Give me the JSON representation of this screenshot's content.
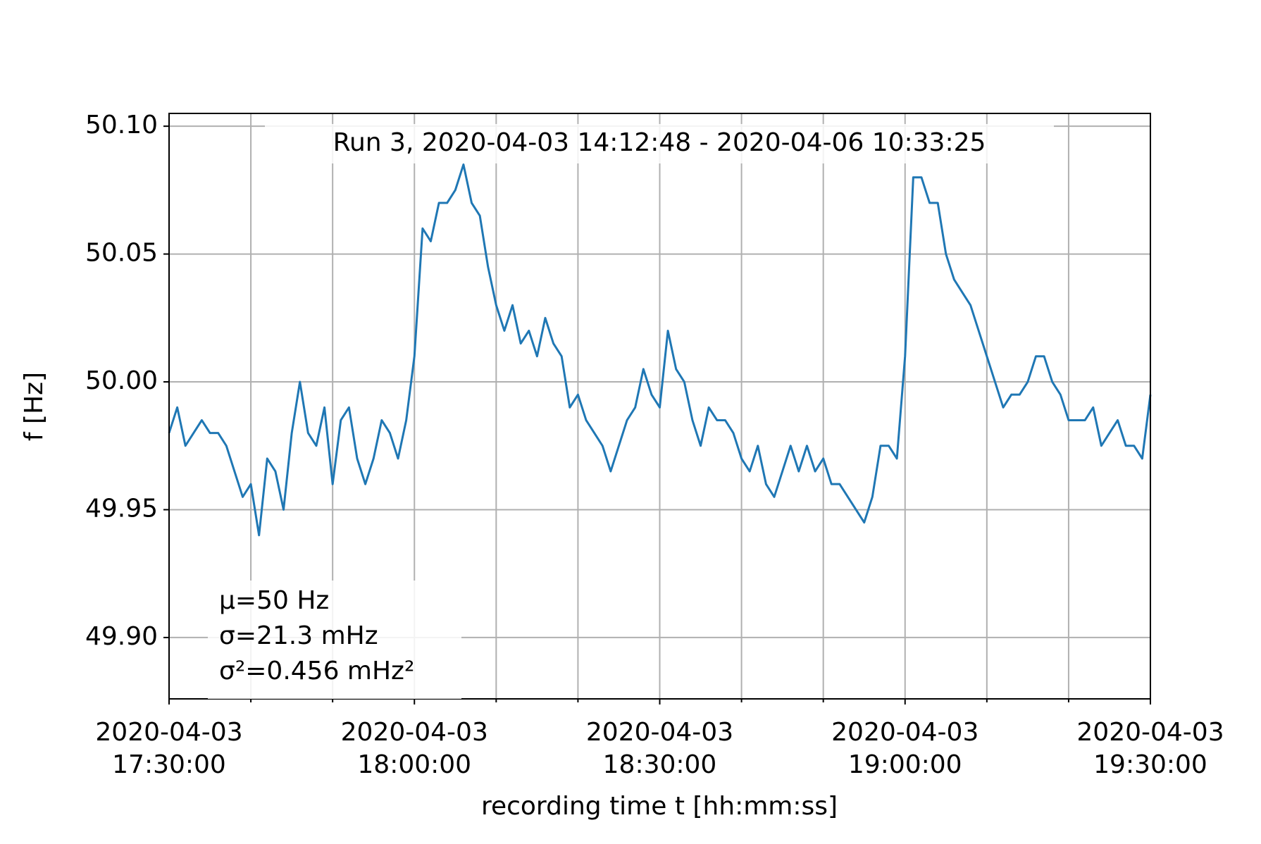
{
  "chart_data": {
    "type": "line",
    "title": "Run 3, 2020-04-03 14:12:48 - 2020-04-06 10:33:25",
    "xlabel": "recording time t [hh:mm:ss]",
    "ylabel": "f [Hz]",
    "annotations": [
      "μ=50 Hz",
      "σ=21.3 mHz",
      "σ²=0.456 mHz²"
    ],
    "xlim": [
      "2020-04-03 17:30:00",
      "2020-04-03 19:30:00"
    ],
    "ylim": [
      49.876,
      50.105
    ],
    "xticks": [
      {
        "value": "2020-04-03 17:30:00",
        "label": "2020-04-03\n17:30:00"
      },
      {
        "value": "2020-04-03 18:00:00",
        "label": "2020-04-03\n18:00:00"
      },
      {
        "value": "2020-04-03 18:30:00",
        "label": "2020-04-03\n18:30:00"
      },
      {
        "value": "2020-04-03 19:00:00",
        "label": "2020-04-03\n19:00:00"
      },
      {
        "value": "2020-04-03 19:30:00",
        "label": "2020-04-03\n19:30:00"
      }
    ],
    "xminorticks": [
      "2020-04-03 17:40:00",
      "2020-04-03 17:50:00",
      "2020-04-03 18:10:00",
      "2020-04-03 18:20:00",
      "2020-04-03 18:40:00",
      "2020-04-03 18:50:00",
      "2020-04-03 19:10:00",
      "2020-04-03 19:20:00"
    ],
    "yticks": [
      {
        "value": 49.9,
        "label": "49.90"
      },
      49.95,
      {
        "value": 50.0,
        "label": "50.00"
      },
      50.05,
      {
        "value": 50.1,
        "label": "50.10"
      }
    ],
    "grid": true,
    "x": [
      "2020-04-03 17:30:00",
      "2020-04-03 17:31:00",
      "2020-04-03 17:32:00",
      "2020-04-03 17:33:00",
      "2020-04-03 17:34:00",
      "2020-04-03 17:35:00",
      "2020-04-03 17:36:00",
      "2020-04-03 17:37:00",
      "2020-04-03 17:38:00",
      "2020-04-03 17:39:00",
      "2020-04-03 17:40:00",
      "2020-04-03 17:41:00",
      "2020-04-03 17:42:00",
      "2020-04-03 17:43:00",
      "2020-04-03 17:44:00",
      "2020-04-03 17:45:00",
      "2020-04-03 17:46:00",
      "2020-04-03 17:47:00",
      "2020-04-03 17:48:00",
      "2020-04-03 17:49:00",
      "2020-04-03 17:50:00",
      "2020-04-03 17:51:00",
      "2020-04-03 17:52:00",
      "2020-04-03 17:53:00",
      "2020-04-03 17:54:00",
      "2020-04-03 17:55:00",
      "2020-04-03 17:56:00",
      "2020-04-03 17:57:00",
      "2020-04-03 17:58:00",
      "2020-04-03 17:59:00",
      "2020-04-03 18:00:00",
      "2020-04-03 18:01:00",
      "2020-04-03 18:02:00",
      "2020-04-03 18:03:00",
      "2020-04-03 18:04:00",
      "2020-04-03 18:05:00",
      "2020-04-03 18:06:00",
      "2020-04-03 18:07:00",
      "2020-04-03 18:08:00",
      "2020-04-03 18:09:00",
      "2020-04-03 18:10:00",
      "2020-04-03 18:11:00",
      "2020-04-03 18:12:00",
      "2020-04-03 18:13:00",
      "2020-04-03 18:14:00",
      "2020-04-03 18:15:00",
      "2020-04-03 18:16:00",
      "2020-04-03 18:17:00",
      "2020-04-03 18:18:00",
      "2020-04-03 18:19:00",
      "2020-04-03 18:20:00",
      "2020-04-03 18:21:00",
      "2020-04-03 18:22:00",
      "2020-04-03 18:23:00",
      "2020-04-03 18:24:00",
      "2020-04-03 18:25:00",
      "2020-04-03 18:26:00",
      "2020-04-03 18:27:00",
      "2020-04-03 18:28:00",
      "2020-04-03 18:29:00",
      "2020-04-03 18:30:00",
      "2020-04-03 18:31:00",
      "2020-04-03 18:32:00",
      "2020-04-03 18:33:00",
      "2020-04-03 18:34:00",
      "2020-04-03 18:35:00",
      "2020-04-03 18:36:00",
      "2020-04-03 18:37:00",
      "2020-04-03 18:38:00",
      "2020-04-03 18:39:00",
      "2020-04-03 18:40:00",
      "2020-04-03 18:41:00",
      "2020-04-03 18:42:00",
      "2020-04-03 18:43:00",
      "2020-04-03 18:44:00",
      "2020-04-03 18:45:00",
      "2020-04-03 18:46:00",
      "2020-04-03 18:47:00",
      "2020-04-03 18:48:00",
      "2020-04-03 18:49:00",
      "2020-04-03 18:50:00",
      "2020-04-03 18:51:00",
      "2020-04-03 18:52:00",
      "2020-04-03 18:53:00",
      "2020-04-03 18:54:00",
      "2020-04-03 18:55:00",
      "2020-04-03 18:56:00",
      "2020-04-03 18:57:00",
      "2020-04-03 18:58:00",
      "2020-04-03 18:59:00",
      "2020-04-03 19:00:00",
      "2020-04-03 19:01:00",
      "2020-04-03 19:02:00",
      "2020-04-03 19:03:00",
      "2020-04-03 19:04:00",
      "2020-04-03 19:05:00",
      "2020-04-03 19:06:00",
      "2020-04-03 19:07:00",
      "2020-04-03 19:08:00",
      "2020-04-03 19:09:00",
      "2020-04-03 19:10:00",
      "2020-04-03 19:11:00",
      "2020-04-03 19:12:00",
      "2020-04-03 19:13:00",
      "2020-04-03 19:14:00",
      "2020-04-03 19:15:00",
      "2020-04-03 19:16:00",
      "2020-04-03 19:17:00",
      "2020-04-03 19:18:00",
      "2020-04-03 19:19:00",
      "2020-04-03 19:20:00",
      "2020-04-03 19:21:00",
      "2020-04-03 19:22:00",
      "2020-04-03 19:23:00",
      "2020-04-03 19:24:00",
      "2020-04-03 19:25:00",
      "2020-04-03 19:26:00",
      "2020-04-03 19:27:00",
      "2020-04-03 19:28:00",
      "2020-04-03 19:29:00",
      "2020-04-03 19:30:00"
    ],
    "series": [
      {
        "name": "f",
        "color": "#1f77b4",
        "values": [
          49.98,
          49.99,
          49.975,
          49.98,
          49.985,
          49.98,
          49.98,
          49.975,
          49.965,
          49.955,
          49.96,
          49.94,
          49.97,
          49.965,
          49.95,
          49.98,
          50.0,
          49.98,
          49.975,
          49.99,
          49.96,
          49.985,
          49.99,
          49.97,
          49.96,
          49.97,
          49.985,
          49.98,
          49.97,
          49.985,
          50.01,
          50.06,
          50.055,
          50.07,
          50.07,
          50.075,
          50.085,
          50.07,
          50.065,
          50.045,
          50.03,
          50.02,
          50.03,
          50.015,
          50.02,
          50.01,
          50.025,
          50.015,
          50.01,
          49.99,
          49.995,
          49.985,
          49.98,
          49.975,
          49.965,
          49.975,
          49.985,
          49.99,
          50.005,
          49.995,
          49.99,
          50.02,
          50.005,
          50.0,
          49.985,
          49.975,
          49.99,
          49.985,
          49.985,
          49.98,
          49.97,
          49.965,
          49.975,
          49.96,
          49.955,
          49.965,
          49.975,
          49.965,
          49.975,
          49.965,
          49.97,
          49.96,
          49.96,
          49.955,
          49.95,
          49.945,
          49.955,
          49.975,
          49.975,
          49.97,
          50.01,
          50.08,
          50.08,
          50.07,
          50.07,
          50.05,
          50.04,
          50.035,
          50.03,
          50.02,
          50.01,
          50.0,
          49.99,
          49.995,
          49.995,
          50.0,
          50.01,
          50.01,
          50.0,
          49.995,
          49.985,
          49.985,
          49.985,
          49.99,
          49.975,
          49.98,
          49.985,
          49.975,
          49.975,
          49.97,
          49.995
        ]
      }
    ]
  }
}
